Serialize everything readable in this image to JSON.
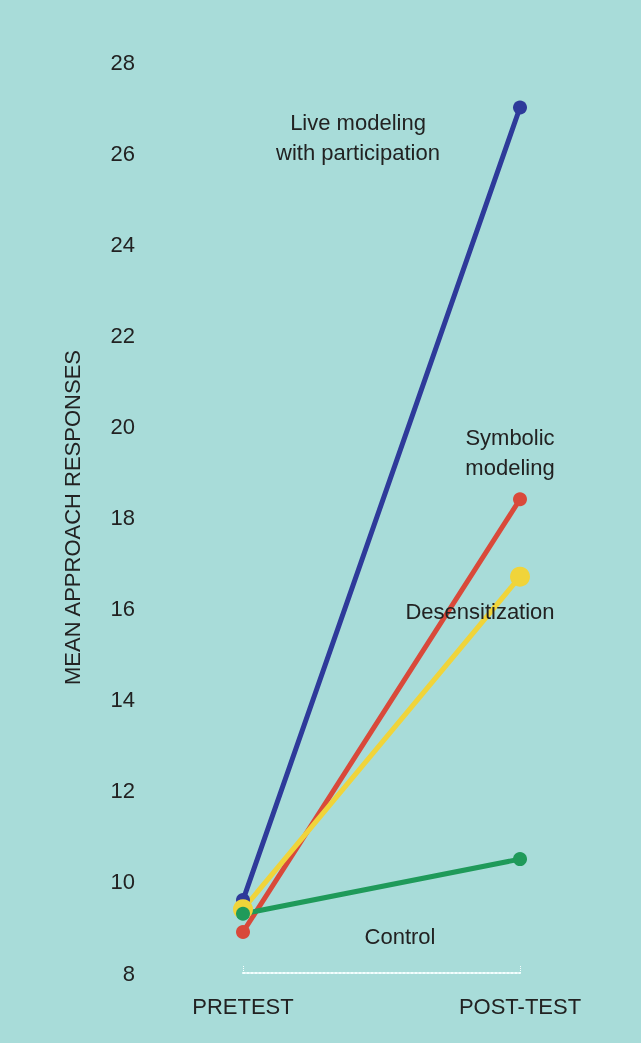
{
  "chart_data": {
    "type": "line",
    "ylabel": "MEAN APPROACH RESPONSES",
    "categories": [
      "PRETEST",
      "POST-TEST"
    ],
    "ylim": [
      8,
      28
    ],
    "yticks": [
      8,
      10,
      12,
      14,
      16,
      18,
      20,
      22,
      24,
      26,
      28
    ],
    "grid": false,
    "legend": false,
    "marker": "circle",
    "line_style": "solid",
    "series": [
      {
        "name": "Live modeling\nwith participation",
        "color": "#2e3a9a",
        "values": [
          9.6,
          27.0
        ]
      },
      {
        "name": "Symbolic\nmodeling",
        "color": "#d9493a",
        "values": [
          8.9,
          18.4
        ]
      },
      {
        "name": "Desensitization",
        "color": "#f0d43a",
        "values": [
          9.4,
          16.7
        ]
      },
      {
        "name": "Control",
        "color": "#1f9a5a",
        "values": [
          9.3,
          10.5
        ]
      }
    ]
  }
}
